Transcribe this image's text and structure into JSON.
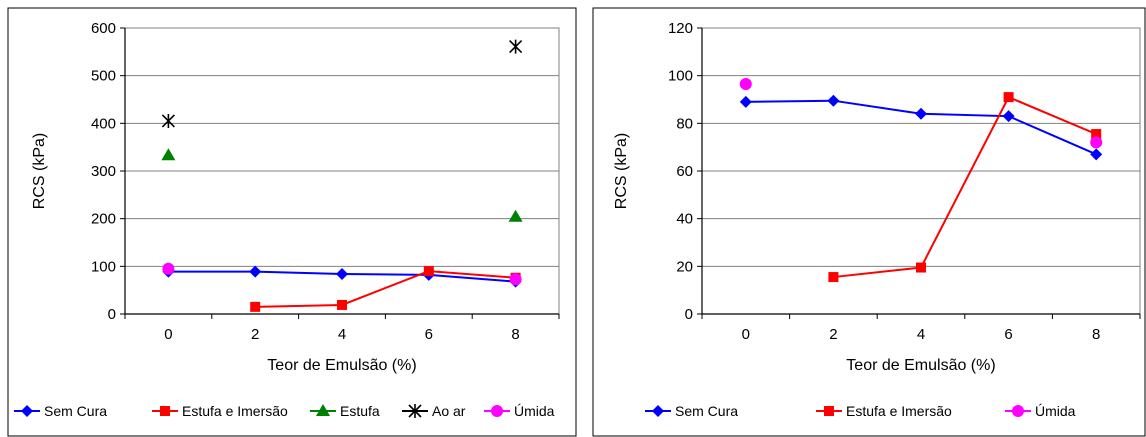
{
  "chart_data": [
    {
      "type": "line",
      "xlabel": "Teor de Emulsão (%)",
      "ylabel": "RCS (kPa)",
      "x_ticks": [
        0,
        2,
        4,
        6,
        8
      ],
      "y_ticks": [
        0,
        100,
        200,
        300,
        400,
        500,
        600
      ],
      "xlim": [
        -1,
        9
      ],
      "ylim": [
        0,
        600
      ],
      "grid": "horizontal",
      "legend_position": "bottom",
      "series": [
        {
          "name": "Sem Cura",
          "color": "#0000ff",
          "marker": "diamond",
          "connected": true,
          "points": [
            [
              0,
              89
            ],
            [
              2,
              89
            ],
            [
              4,
              84
            ],
            [
              6,
              82
            ],
            [
              8,
              68
            ]
          ]
        },
        {
          "name": "Estufa e Imersão",
          "color": "#ff0000",
          "marker": "square",
          "connected": true,
          "points": [
            [
              2,
              15
            ],
            [
              4,
              19
            ],
            [
              6,
              90
            ],
            [
              8,
              76
            ]
          ]
        },
        {
          "name": "Estufa",
          "color": "#008000",
          "marker": "triangle",
          "connected": false,
          "points": [
            [
              0,
              333
            ],
            [
              8,
              204
            ]
          ]
        },
        {
          "name": "Ao ar",
          "color": "#000000",
          "marker": "star",
          "connected": false,
          "points": [
            [
              0,
              405
            ],
            [
              8,
              561
            ]
          ]
        },
        {
          "name": "Úmida",
          "color": "#ff00ff",
          "marker": "circle",
          "connected": false,
          "points": [
            [
              0,
              95
            ],
            [
              8,
              73
            ]
          ]
        }
      ]
    },
    {
      "type": "line",
      "xlabel": "Teor de Emulsão (%)",
      "ylabel": "RCS (kPa)",
      "x_ticks": [
        0,
        2,
        4,
        6,
        8
      ],
      "y_ticks": [
        0,
        20,
        40,
        60,
        80,
        100,
        120
      ],
      "xlim": [
        -1,
        9
      ],
      "ylim": [
        0,
        120
      ],
      "grid": "horizontal",
      "legend_position": "bottom",
      "series": [
        {
          "name": "Sem Cura",
          "color": "#0000ff",
          "marker": "diamond",
          "connected": true,
          "points": [
            [
              0,
              89
            ],
            [
              2,
              89.5
            ],
            [
              4,
              84
            ],
            [
              6,
              83
            ],
            [
              8,
              67
            ]
          ]
        },
        {
          "name": "Estufa e Imersão",
          "color": "#ff0000",
          "marker": "square",
          "connected": true,
          "points": [
            [
              2,
              15.5
            ],
            [
              4,
              19.5
            ],
            [
              6,
              91
            ],
            [
              8,
              75.5
            ]
          ]
        },
        {
          "name": "Úmida",
          "color": "#ff00ff",
          "marker": "circle",
          "connected": false,
          "points": [
            [
              0,
              96.5
            ],
            [
              8,
              72
            ]
          ]
        }
      ]
    }
  ]
}
